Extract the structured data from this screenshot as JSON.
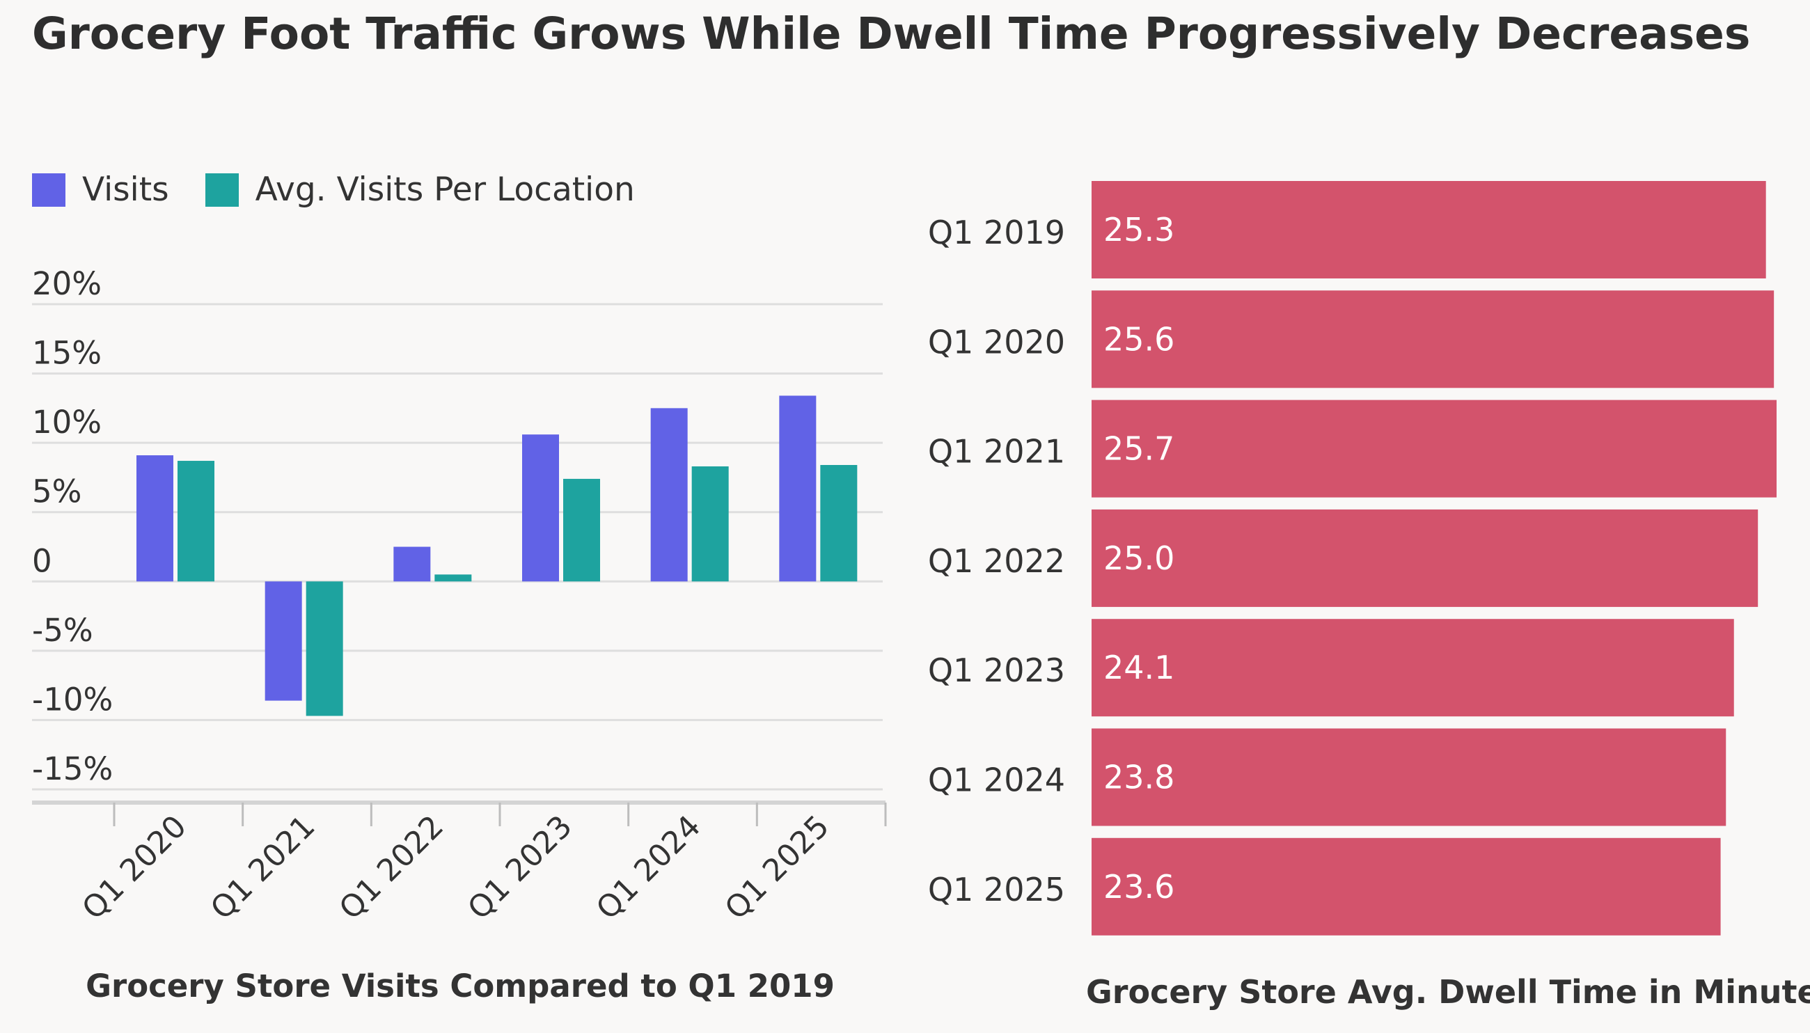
{
  "title": "Grocery Foot Traffic Grows While Dwell Time Progressively Decreases",
  "colors": {
    "visits": "#6162e6",
    "avg_visits": "#1ea39f",
    "dwell": "#d3536c",
    "grid": "#dedede",
    "axis": "#d4d4d4"
  },
  "chart_data": [
    {
      "type": "bar",
      "title": "Grocery Store Visits Compared to Q1 2019",
      "xlabel": "Grocery Store Visits Compared to Q1 2019",
      "ylabel": "",
      "categories": [
        "Q1 2020",
        "Q1 2021",
        "Q1 2022",
        "Q1 2023",
        "Q1 2024",
        "Q1 2025"
      ],
      "series": [
        {
          "name": "Visits",
          "values": [
            9.1,
            -8.6,
            2.5,
            10.6,
            12.5,
            13.4
          ]
        },
        {
          "name": "Avg. Visits Per Location",
          "values": [
            8.7,
            -9.7,
            0.5,
            7.4,
            8.3,
            8.4
          ]
        }
      ],
      "ylim": [
        -15,
        20
      ],
      "ytick_values": [
        20,
        15,
        10,
        5,
        0,
        -5,
        -10,
        -15
      ],
      "ytick_labels": [
        "20%",
        "15%",
        "10%",
        "5%",
        "0",
        "-5%",
        "-10%",
        "-15%"
      ],
      "grid": true,
      "legend": "top-left"
    },
    {
      "type": "bar",
      "orientation": "horizontal",
      "title": "Grocery Store Avg. Dwell Time in Minutes",
      "xlabel": "Grocery Store Avg. Dwell Time in Minutes",
      "categories": [
        "Q1 2019",
        "Q1 2020",
        "Q1 2021",
        "Q1 2022",
        "Q1 2023",
        "Q1 2024",
        "Q1 2025"
      ],
      "values": [
        25.3,
        25.6,
        25.7,
        25.0,
        24.1,
        23.8,
        23.6
      ],
      "value_labels": [
        "25.3",
        "25.6",
        "25.7",
        "25.0",
        "24.1",
        "23.8",
        "23.6"
      ],
      "xlim": [
        0,
        25.7
      ]
    }
  ]
}
